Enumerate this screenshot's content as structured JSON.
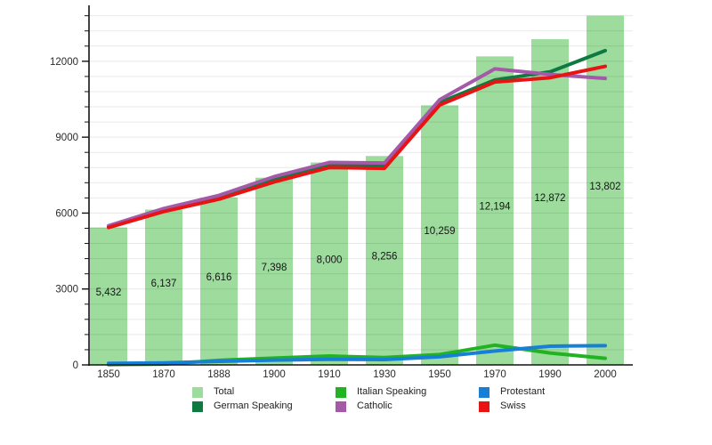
{
  "chart_data": {
    "type": "bar",
    "title": "",
    "xlabel": "",
    "ylabel": "",
    "categories": [
      "1850",
      "1870",
      "1888",
      "1900",
      "1910",
      "1930",
      "1950",
      "1970",
      "1990",
      "2000"
    ],
    "bars": {
      "name": "Total",
      "color": "#9edc9e",
      "values": [
        5432,
        6137,
        6616,
        7398,
        8000,
        8256,
        10259,
        12194,
        12872,
        13802
      ],
      "labels": [
        "5,432",
        "6,137",
        "6,616",
        "7,398",
        "8,000",
        "8,256",
        "10,259",
        "12,194",
        "12,872",
        "13,802"
      ]
    },
    "series": [
      {
        "name": "German Speaking",
        "color": "#0e7a42",
        "values": [
          5470,
          6120,
          6620,
          7330,
          7890,
          7860,
          10370,
          11260,
          11580,
          12420
        ]
      },
      {
        "name": "Italian Speaking",
        "color": "#22b322",
        "values": [
          10,
          30,
          180,
          270,
          350,
          290,
          410,
          780,
          470,
          260
        ]
      },
      {
        "name": "Catholic",
        "color": "#a45aa8",
        "values": [
          5500,
          6180,
          6700,
          7440,
          8000,
          7980,
          10480,
          11700,
          11480,
          11320
        ]
      },
      {
        "name": "Protestant",
        "color": "#1780d6",
        "values": [
          60,
          80,
          140,
          190,
          220,
          210,
          320,
          550,
          740,
          760
        ]
      },
      {
        "name": "Swiss",
        "color": "#e81414",
        "values": [
          5430,
          6060,
          6550,
          7230,
          7800,
          7770,
          10270,
          11180,
          11350,
          11800
        ]
      }
    ],
    "y_axis": {
      "max": 14140,
      "major_tick_values": [
        0,
        3000,
        6000,
        9000,
        12000
      ],
      "major_tick_labels": [
        "0",
        "3000",
        "6000",
        "9000",
        "12000"
      ],
      "minor_step": 600,
      "grid": "on"
    },
    "legend_position": "bottom"
  },
  "legend": {
    "items": [
      {
        "label": "Total",
        "color": "#9edc9e"
      },
      {
        "label": "German Speaking",
        "color": "#0e7a42"
      },
      {
        "label": "Italian Speaking",
        "color": "#22b322"
      },
      {
        "label": "Catholic",
        "color": "#a45aa8"
      },
      {
        "label": "Protestant",
        "color": "#1780d6"
      },
      {
        "label": "Swiss",
        "color": "#e81414"
      }
    ]
  }
}
